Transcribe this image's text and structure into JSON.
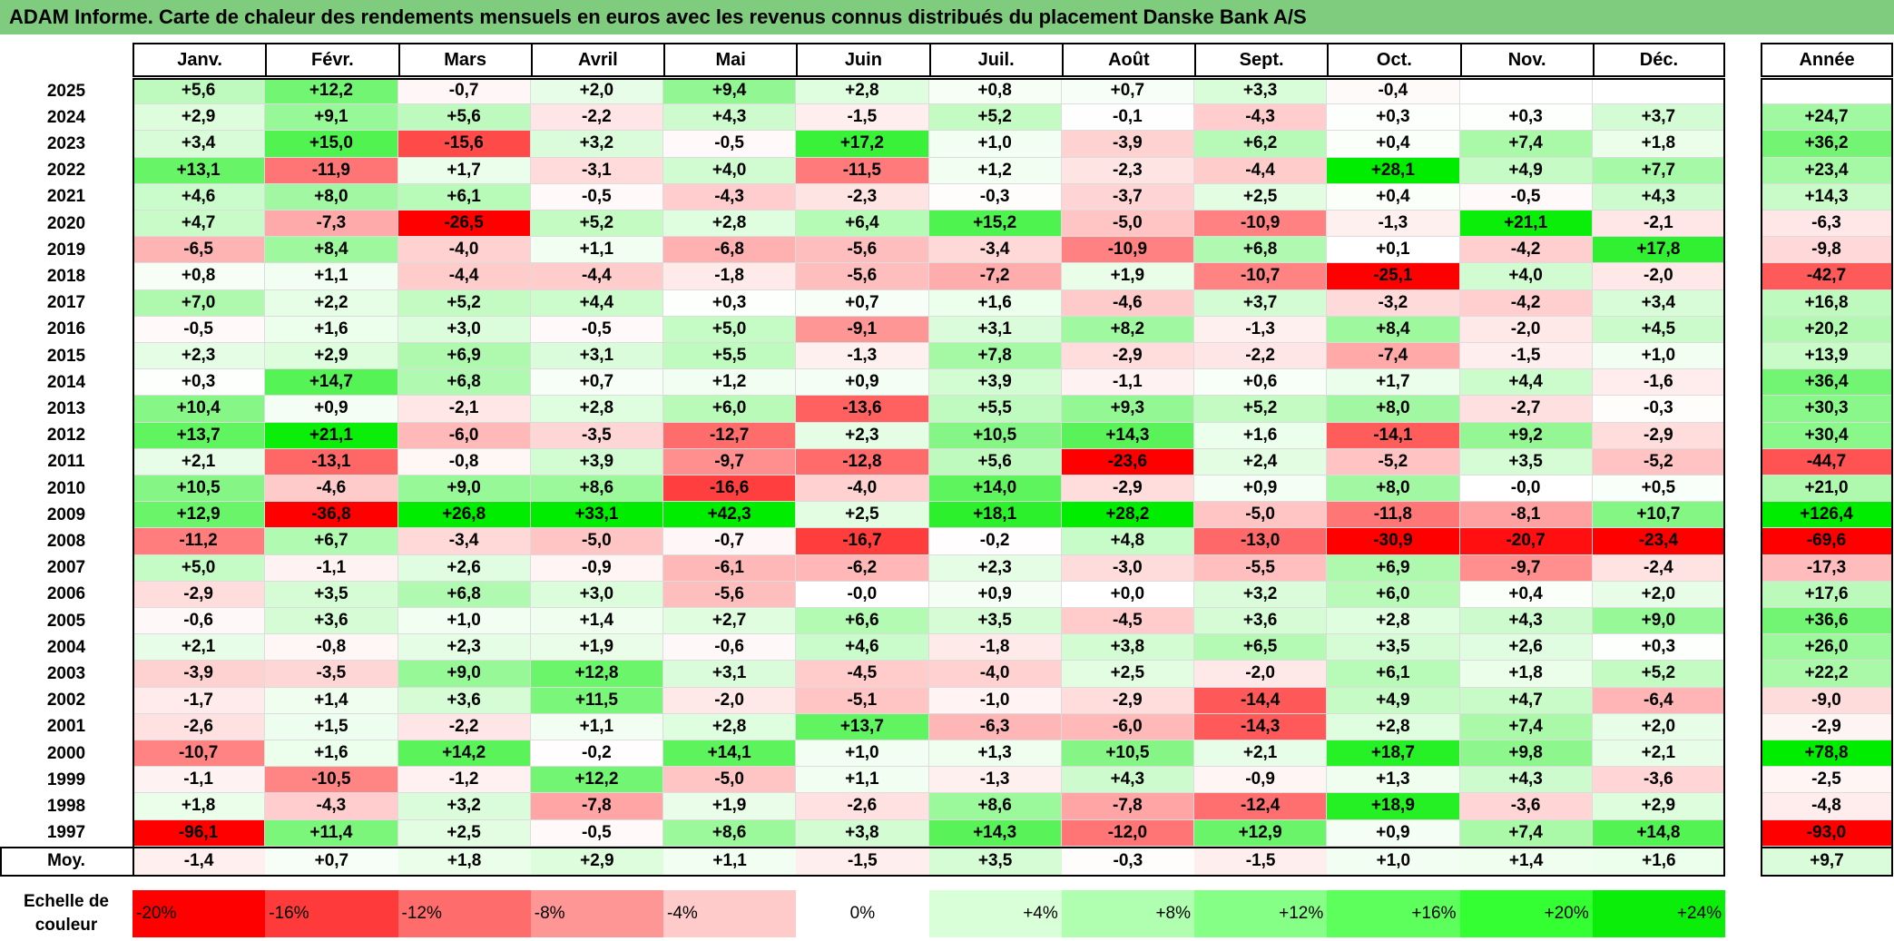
{
  "title": "ADAM Informe. Carte de chaleur des rendements mensuels en euros avec les revenus connus distribués du placement Danske Bank A/S",
  "chart_data": {
    "type": "heatmap",
    "title": "ADAM Informe. Carte de chaleur des rendements mensuels en euros avec les revenus connus distribués du placement Danske Bank A/S",
    "months": [
      "Janv.",
      "Févr.",
      "Mars",
      "Avril",
      "Mai",
      "Juin",
      "Juil.",
      "Août",
      "Sept.",
      "Oct.",
      "Nov.",
      "Déc."
    ],
    "annual_header": "Année",
    "rows": [
      {
        "year": "2025",
        "values": [
          "+5,6",
          "+12,2",
          "-0,7",
          "+2,0",
          "+9,4",
          "+2,8",
          "+0,8",
          "+0,7",
          "+3,3",
          "-0,4",
          "",
          ""
        ],
        "annual": ""
      },
      {
        "year": "2024",
        "values": [
          "+2,9",
          "+9,1",
          "+5,6",
          "-2,2",
          "+4,3",
          "-1,5",
          "+5,2",
          "-0,1",
          "-4,3",
          "+0,3",
          "+0,3",
          "+3,7"
        ],
        "annual": "+24,7"
      },
      {
        "year": "2023",
        "values": [
          "+3,4",
          "+15,0",
          "-15,6",
          "+3,2",
          "-0,5",
          "+17,2",
          "+1,0",
          "-3,9",
          "+6,2",
          "+0,4",
          "+7,4",
          "+1,8"
        ],
        "annual": "+36,2"
      },
      {
        "year": "2022",
        "values": [
          "+13,1",
          "-11,9",
          "+1,7",
          "-3,1",
          "+4,0",
          "-11,5",
          "+1,2",
          "-2,3",
          "-4,4",
          "+28,1",
          "+4,9",
          "+7,7"
        ],
        "annual": "+23,4"
      },
      {
        "year": "2021",
        "values": [
          "+4,6",
          "+8,0",
          "+6,1",
          "-0,5",
          "-4,3",
          "-2,3",
          "-0,3",
          "-3,7",
          "+2,5",
          "+0,4",
          "-0,5",
          "+4,3"
        ],
        "annual": "+14,3"
      },
      {
        "year": "2020",
        "values": [
          "+4,7",
          "-7,3",
          "-26,5",
          "+5,2",
          "+2,8",
          "+6,4",
          "+15,2",
          "-5,0",
          "-10,9",
          "-1,3",
          "+21,1",
          "-2,1"
        ],
        "annual": "-6,3"
      },
      {
        "year": "2019",
        "values": [
          "-6,5",
          "+8,4",
          "-4,0",
          "+1,1",
          "-6,8",
          "-5,6",
          "-3,4",
          "-10,9",
          "+6,8",
          "+0,1",
          "-4,2",
          "+17,8"
        ],
        "annual": "-9,8"
      },
      {
        "year": "2018",
        "values": [
          "+0,8",
          "+1,1",
          "-4,4",
          "-4,4",
          "-1,8",
          "-5,6",
          "-7,2",
          "+1,9",
          "-10,7",
          "-25,1",
          "+4,0",
          "-2,0"
        ],
        "annual": "-42,7"
      },
      {
        "year": "2017",
        "values": [
          "+7,0",
          "+2,2",
          "+5,2",
          "+4,4",
          "+0,3",
          "+0,7",
          "+1,6",
          "-4,6",
          "+3,7",
          "-3,2",
          "-4,2",
          "+3,4"
        ],
        "annual": "+16,8"
      },
      {
        "year": "2016",
        "values": [
          "-0,5",
          "+1,6",
          "+3,0",
          "-0,5",
          "+5,0",
          "-9,1",
          "+3,1",
          "+8,2",
          "-1,3",
          "+8,4",
          "-2,0",
          "+4,5"
        ],
        "annual": "+20,2"
      },
      {
        "year": "2015",
        "values": [
          "+2,3",
          "+2,9",
          "+6,9",
          "+3,1",
          "+5,5",
          "-1,3",
          "+7,8",
          "-2,9",
          "-2,2",
          "-7,4",
          "-1,5",
          "+1,0"
        ],
        "annual": "+13,9"
      },
      {
        "year": "2014",
        "values": [
          "+0,3",
          "+14,7",
          "+6,8",
          "+0,7",
          "+1,2",
          "+0,9",
          "+3,9",
          "-1,1",
          "+0,6",
          "+1,7",
          "+4,4",
          "-1,6"
        ],
        "annual": "+36,4"
      },
      {
        "year": "2013",
        "values": [
          "+10,4",
          "+0,9",
          "-2,1",
          "+2,8",
          "+6,0",
          "-13,6",
          "+5,5",
          "+9,3",
          "+5,2",
          "+8,0",
          "-2,7",
          "-0,3"
        ],
        "annual": "+30,3"
      },
      {
        "year": "2012",
        "values": [
          "+13,7",
          "+21,1",
          "-6,0",
          "-3,5",
          "-12,7",
          "+2,3",
          "+10,5",
          "+14,3",
          "+1,6",
          "-14,1",
          "+9,2",
          "-2,9"
        ],
        "annual": "+30,4"
      },
      {
        "year": "2011",
        "values": [
          "+2,1",
          "-13,1",
          "-0,8",
          "+3,9",
          "-9,7",
          "-12,8",
          "+5,6",
          "-23,6",
          "+2,4",
          "-5,2",
          "+3,5",
          "-5,2"
        ],
        "annual": "-44,7"
      },
      {
        "year": "2010",
        "values": [
          "+10,5",
          "-4,6",
          "+9,0",
          "+8,6",
          "-16,6",
          "-4,0",
          "+14,0",
          "-2,9",
          "+0,9",
          "+8,0",
          "-0,0",
          "+0,5"
        ],
        "annual": "+21,0"
      },
      {
        "year": "2009",
        "values": [
          "+12,9",
          "-36,8",
          "+26,8",
          "+33,1",
          "+42,3",
          "+2,5",
          "+18,1",
          "+28,2",
          "-5,0",
          "-11,8",
          "-8,1",
          "+10,7"
        ],
        "annual": "+126,4"
      },
      {
        "year": "2008",
        "values": [
          "-11,2",
          "+6,7",
          "-3,4",
          "-5,0",
          "-0,7",
          "-16,7",
          "-0,2",
          "+4,8",
          "-13,0",
          "-30,9",
          "-20,7",
          "-23,4"
        ],
        "annual": "-69,6"
      },
      {
        "year": "2007",
        "values": [
          "+5,0",
          "-1,1",
          "+2,6",
          "-0,9",
          "-6,1",
          "-6,2",
          "+2,3",
          "-3,0",
          "-5,5",
          "+6,9",
          "-9,7",
          "-2,4"
        ],
        "annual": "-17,3"
      },
      {
        "year": "2006",
        "values": [
          "-2,9",
          "+3,5",
          "+6,8",
          "+3,0",
          "-5,6",
          "-0,0",
          "+0,9",
          "+0,0",
          "+3,2",
          "+6,0",
          "+0,4",
          "+2,0"
        ],
        "annual": "+17,6"
      },
      {
        "year": "2005",
        "values": [
          "-0,6",
          "+3,6",
          "+1,0",
          "+1,4",
          "+2,7",
          "+6,6",
          "+3,5",
          "-4,5",
          "+3,6",
          "+2,8",
          "+4,3",
          "+9,0"
        ],
        "annual": "+36,6"
      },
      {
        "year": "2004",
        "values": [
          "+2,1",
          "-0,8",
          "+2,3",
          "+1,9",
          "-0,6",
          "+4,6",
          "-1,8",
          "+3,8",
          "+6,5",
          "+3,5",
          "+2,6",
          "+0,3"
        ],
        "annual": "+26,0"
      },
      {
        "year": "2003",
        "values": [
          "-3,9",
          "-3,5",
          "+9,0",
          "+12,8",
          "+3,1",
          "-4,5",
          "-4,0",
          "+2,5",
          "-2,0",
          "+6,1",
          "+1,8",
          "+5,2"
        ],
        "annual": "+22,2"
      },
      {
        "year": "2002",
        "values": [
          "-1,7",
          "+1,4",
          "+3,6",
          "+11,5",
          "-2,0",
          "-5,1",
          "-1,0",
          "-2,9",
          "-14,4",
          "+4,9",
          "+4,7",
          "-6,4"
        ],
        "annual": "-9,0"
      },
      {
        "year": "2001",
        "values": [
          "-2,6",
          "+1,5",
          "-2,2",
          "+1,1",
          "+2,8",
          "+13,7",
          "-6,3",
          "-6,0",
          "-14,3",
          "+2,8",
          "+7,4",
          "+2,0"
        ],
        "annual": "-2,9"
      },
      {
        "year": "2000",
        "values": [
          "-10,7",
          "+1,6",
          "+14,2",
          "-0,2",
          "+14,1",
          "+1,0",
          "+1,3",
          "+10,5",
          "+2,1",
          "+18,7",
          "+9,8",
          "+2,1"
        ],
        "annual": "+78,8"
      },
      {
        "year": "1999",
        "values": [
          "-1,1",
          "-10,5",
          "-1,2",
          "+12,2",
          "-5,0",
          "+1,1",
          "-1,3",
          "+4,3",
          "-0,9",
          "+1,3",
          "+4,3",
          "-3,6"
        ],
        "annual": "-2,5"
      },
      {
        "year": "1998",
        "values": [
          "+1,8",
          "-4,3",
          "+3,2",
          "-7,8",
          "+1,9",
          "-2,6",
          "+8,6",
          "-7,8",
          "-12,4",
          "+18,9",
          "-3,6",
          "+2,9"
        ],
        "annual": "-4,8"
      },
      {
        "year": "1997",
        "values": [
          "-96,1",
          "+11,4",
          "+2,5",
          "-0,5",
          "+8,6",
          "+3,8",
          "+14,3",
          "-12,0",
          "+12,9",
          "+0,9",
          "+7,4",
          "+14,8"
        ],
        "annual": "-93,0"
      }
    ],
    "average": {
      "label": "Moy.",
      "values": [
        "-1,4",
        "+0,7",
        "+1,8",
        "+2,9",
        "+1,1",
        "-1,5",
        "+3,5",
        "-0,3",
        "-1,5",
        "+1,0",
        "+1,4",
        "+1,6"
      ],
      "annual": "+9,7"
    },
    "scale": {
      "label": "Echelle de couleur",
      "steps": [
        "-20%",
        "-16%",
        "-12%",
        "-8%",
        "-4%",
        "0%",
        "+4%",
        "+8%",
        "+12%",
        "+16%",
        "+20%",
        "+24%"
      ],
      "colors": [
        "#ff0000",
        "#ff3a3a",
        "#ff6c6c",
        "#ff9696",
        "#ffcaca",
        "#ffffff",
        "#d9ffd9",
        "#b0ffb0",
        "#85ff85",
        "#5cff5c",
        "#33ff33",
        "#0aee0a"
      ]
    }
  }
}
